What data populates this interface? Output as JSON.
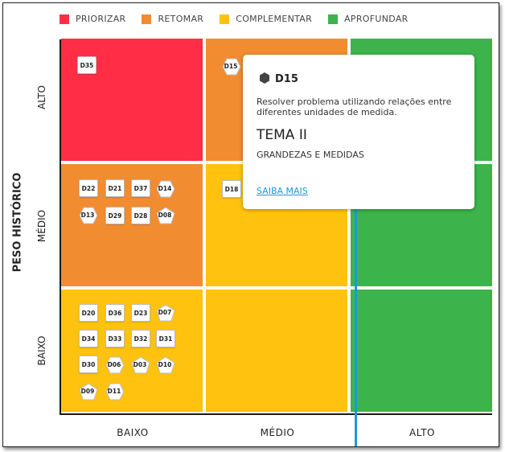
{
  "legend": [
    {
      "label": "PRIORIZAR",
      "color": "#ff2d45"
    },
    {
      "label": "RETOMAR",
      "color": "#f28c30"
    },
    {
      "label": "COMPLEMENTAR",
      "color": "#ffc20e"
    },
    {
      "label": "APROFUNDAR",
      "color": "#3cb44b"
    }
  ],
  "axis": {
    "y_title": "PESO HISTÓRICO",
    "rows": [
      "ALTO",
      "MÉDIO",
      "BAIXO"
    ],
    "cols": [
      "BAIXO",
      "MÉDIO",
      "ALTO"
    ]
  },
  "colors": {
    "priorizar": "#ff2d45",
    "retomar": "#f28c30",
    "complementar": "#ffc20e",
    "aprofundar": "#3cb44b",
    "link": "#1a9ad6"
  },
  "badges": {
    "alto_baixo": [
      {
        "code": "D35",
        "shape": "square"
      }
    ],
    "alto_medio": [
      {
        "code": "D15",
        "shape": "hex"
      }
    ],
    "medio_baixo": [
      {
        "code": "D22",
        "shape": "square"
      },
      {
        "code": "D21",
        "shape": "square"
      },
      {
        "code": "D37",
        "shape": "square"
      },
      {
        "code": "D14",
        "shape": "hex"
      },
      {
        "code": "D13",
        "shape": "hex"
      },
      {
        "code": "D29",
        "shape": "square"
      },
      {
        "code": "D28",
        "shape": "square"
      },
      {
        "code": "D08",
        "shape": "pent"
      }
    ],
    "medio_medio": [
      {
        "code": "D18",
        "shape": "square"
      }
    ],
    "baixo_baixo": [
      {
        "code": "D20",
        "shape": "square"
      },
      {
        "code": "D36",
        "shape": "square"
      },
      {
        "code": "D23",
        "shape": "square"
      },
      {
        "code": "D07",
        "shape": "pent"
      },
      {
        "code": "D34",
        "shape": "square"
      },
      {
        "code": "D33",
        "shape": "square"
      },
      {
        "code": "D32",
        "shape": "square"
      },
      {
        "code": "D31",
        "shape": "square"
      },
      {
        "code": "D30",
        "shape": "square"
      },
      {
        "code": "D06",
        "shape": "hex"
      },
      {
        "code": "D03",
        "shape": "pent"
      },
      {
        "code": "D10",
        "shape": "pent"
      },
      {
        "code": "D09",
        "shape": "pent"
      },
      {
        "code": "D11",
        "shape": "hex"
      }
    ]
  },
  "popup": {
    "code": "D15",
    "description": "Resolver problema utilizando relações entre diferentes unidades de medida.",
    "tema": "TEMA II",
    "area": "GRANDEZAS E MEDIDAS",
    "link": "SAIBA MAIS"
  }
}
